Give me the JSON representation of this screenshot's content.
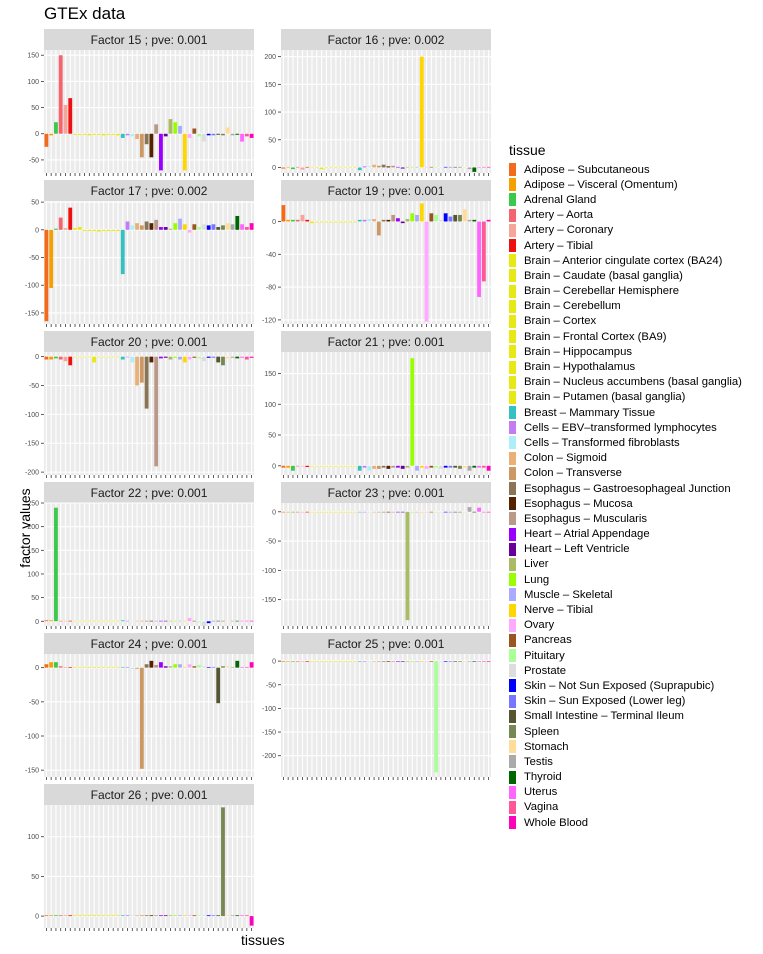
{
  "figure": {
    "title": "GTEx data",
    "xlabel": "tissues",
    "ylabel": "factor values"
  },
  "legend": {
    "title": "tissue",
    "items": [
      {
        "label": "Adipose – Subcutaneous",
        "color": "#F26B1D"
      },
      {
        "label": "Adipose – Visceral (Omentum)",
        "color": "#F5A000"
      },
      {
        "label": "Adrenal Gland",
        "color": "#3AC94A"
      },
      {
        "label": "Artery – Aorta",
        "color": "#F4646E"
      },
      {
        "label": "Artery – Coronary",
        "color": "#F7A59A"
      },
      {
        "label": "Artery – Tibial",
        "color": "#EE1111"
      },
      {
        "label": "Brain – Anterior cingulate cortex (BA24)",
        "color": "#E8E815"
      },
      {
        "label": "Brain – Caudate (basal ganglia)",
        "color": "#E8E815"
      },
      {
        "label": "Brain – Cerebellar Hemisphere",
        "color": "#E8E815"
      },
      {
        "label": "Brain – Cerebellum",
        "color": "#E8E815"
      },
      {
        "label": "Brain – Cortex",
        "color": "#E8E815"
      },
      {
        "label": "Brain – Frontal Cortex (BA9)",
        "color": "#E8E815"
      },
      {
        "label": "Brain – Hippocampus",
        "color": "#E8E815"
      },
      {
        "label": "Brain – Hypothalamus",
        "color": "#E8E815"
      },
      {
        "label": "Brain – Nucleus accumbens (basal ganglia)",
        "color": "#E8E815"
      },
      {
        "label": "Brain – Putamen (basal ganglia)",
        "color": "#E8E815"
      },
      {
        "label": "Breast – Mammary Tissue",
        "color": "#35C1C4"
      },
      {
        "label": "Cells – EBV–transformed lymphocytes",
        "color": "#C37CF2"
      },
      {
        "label": "Cells – Transformed fibroblasts",
        "color": "#AEEDFA"
      },
      {
        "label": "Colon – Sigmoid",
        "color": "#EBB078"
      },
      {
        "label": "Colon – Transverse",
        "color": "#CC9966"
      },
      {
        "label": "Esophagus – Gastroesophageal Junction",
        "color": "#8B7355"
      },
      {
        "label": "Esophagus – Mucosa",
        "color": "#552200"
      },
      {
        "label": "Esophagus – Muscularis",
        "color": "#BB9988"
      },
      {
        "label": "Heart – Atrial Appendage",
        "color": "#9900FF"
      },
      {
        "label": "Heart – Left Ventricle",
        "color": "#660099"
      },
      {
        "label": "Liver",
        "color": "#AABB66"
      },
      {
        "label": "Lung",
        "color": "#99FF00"
      },
      {
        "label": "Muscle – Skeletal",
        "color": "#AAAAFF"
      },
      {
        "label": "Nerve – Tibial",
        "color": "#FFD700"
      },
      {
        "label": "Ovary",
        "color": "#FFAAFF"
      },
      {
        "label": "Pancreas",
        "color": "#995522"
      },
      {
        "label": "Pituitary",
        "color": "#AAFF99"
      },
      {
        "label": "Prostate",
        "color": "#DDDDDD"
      },
      {
        "label": "Skin – Not Sun Exposed (Suprapubic)",
        "color": "#0000FF"
      },
      {
        "label": "Skin – Sun Exposed (Lower leg)",
        "color": "#7777FF"
      },
      {
        "label": "Small Intestine – Terminal Ileum",
        "color": "#555533"
      },
      {
        "label": "Spleen",
        "color": "#778855"
      },
      {
        "label": "Stomach",
        "color": "#FFDD99"
      },
      {
        "label": "Testis",
        "color": "#AAAAAA"
      },
      {
        "label": "Thyroid",
        "color": "#006600"
      },
      {
        "label": "Uterus",
        "color": "#FF66FF"
      },
      {
        "label": "Vagina",
        "color": "#FF5599"
      },
      {
        "label": "Whole Blood",
        "color": "#FF00BB"
      }
    ]
  },
  "chart_data": [
    {
      "type": "bar",
      "title": "Factor 15 ; pve: 0.001",
      "ylim": [
        -75,
        160
      ],
      "yticks": [
        -50,
        0,
        50,
        100,
        150
      ],
      "values": [
        -25,
        -3,
        22,
        150,
        55,
        68,
        -2,
        -2,
        -2,
        -3,
        -2,
        -2,
        -3,
        -2,
        -2,
        -3,
        -8,
        -3,
        -5,
        -10,
        -45,
        -20,
        -45,
        18,
        -70,
        -5,
        28,
        22,
        15,
        -70,
        -8,
        10,
        -5,
        -15,
        -3,
        -3,
        -2,
        -3,
        12,
        -3,
        -2,
        -15,
        -5,
        -8
      ]
    },
    {
      "type": "bar",
      "title": "Factor 16 ; pve: 0.002",
      "ylim": [
        -10,
        212
      ],
      "yticks": [
        0,
        50,
        100,
        150,
        200
      ],
      "values": [
        -2,
        1,
        -3,
        1,
        -4,
        1,
        1,
        0,
        -3,
        0,
        1,
        -1,
        1,
        1,
        1,
        1,
        -5,
        2,
        2,
        5,
        3,
        5,
        2,
        3,
        1,
        -2,
        1,
        1,
        1,
        200,
        1,
        1,
        1,
        -1,
        1,
        1,
        1,
        1,
        1,
        -3,
        -8,
        0,
        1,
        1
      ]
    },
    {
      "type": "bar",
      "title": "Factor 17 ; pve: 0.002",
      "ylim": [
        -170,
        52
      ],
      "yticks": [
        -150,
        -100,
        -50,
        0,
        50
      ],
      "values": [
        -165,
        -105,
        2,
        22,
        3,
        40,
        3,
        5,
        -2,
        -2,
        -2,
        -3,
        -2,
        -2,
        -2,
        -2,
        -80,
        15,
        8,
        12,
        8,
        15,
        12,
        18,
        5,
        5,
        2,
        12,
        20,
        10,
        -5,
        10,
        5,
        10,
        8,
        10,
        5,
        8,
        12,
        10,
        25,
        10,
        5,
        12
      ]
    },
    {
      "type": "bar",
      "title": "Factor 19 ; pve: 0.001",
      "ylim": [
        -125,
        25
      ],
      "yticks": [
        -120,
        -80,
        -40,
        0
      ],
      "values": [
        20,
        2,
        2,
        2,
        8,
        2,
        -2,
        -1,
        -1,
        -1,
        -1,
        -1,
        -1,
        -1,
        -1,
        -1,
        2,
        2,
        3,
        3,
        -17,
        2,
        2,
        8,
        4,
        -2,
        3,
        10,
        8,
        22,
        -122,
        10,
        8,
        2,
        10,
        6,
        8,
        8,
        15,
        2,
        2,
        -92,
        -73,
        2
      ]
    },
    {
      "type": "bar",
      "title": "Factor 20 ; pve: 0.001",
      "ylim": [
        -205,
        8
      ],
      "yticks": [
        -200,
        -150,
        -100,
        -50,
        0
      ],
      "values": [
        -5,
        -5,
        -3,
        -5,
        -8,
        -15,
        -1,
        -1,
        -1,
        -1,
        -10,
        -1,
        -1,
        -1,
        -1,
        -1,
        -5,
        -1,
        -10,
        -50,
        -45,
        -90,
        -10,
        -190,
        -3,
        -2,
        -5,
        -2,
        -5,
        -10,
        -5,
        -2,
        -3,
        -8,
        -2,
        -2,
        -10,
        -15,
        -3,
        -2,
        -3,
        -2,
        -5,
        -2
      ]
    },
    {
      "type": "bar",
      "title": "Factor 21 ; pve: 0.001",
      "ylim": [
        -15,
        185
      ],
      "yticks": [
        0,
        50,
        100,
        150
      ],
      "values": [
        -3,
        -3,
        -8,
        -1,
        -1,
        -2,
        -1,
        -1,
        -1,
        -1,
        -1,
        -1,
        -1,
        -1,
        -1,
        -1,
        -8,
        -3,
        -8,
        -5,
        -5,
        -3,
        -5,
        -3,
        -3,
        -5,
        -3,
        175,
        -8,
        -3,
        -5,
        -3,
        -3,
        -5,
        -3,
        -3,
        -3,
        -5,
        -3,
        -8,
        -3,
        -3,
        -3,
        -8
      ]
    },
    {
      "type": "bar",
      "title": "Factor 22 ; pve: 0.001",
      "ylim": [
        -10,
        250
      ],
      "yticks": [
        0,
        50,
        100,
        150,
        200,
        250
      ],
      "values": [
        2,
        2,
        240,
        1,
        1,
        1,
        1,
        1,
        1,
        1,
        1,
        1,
        1,
        1,
        1,
        1,
        2,
        1,
        1,
        1,
        1,
        1,
        1,
        1,
        1,
        1,
        1,
        1,
        1,
        1,
        7,
        1,
        -2,
        -10,
        -4,
        1,
        1,
        1,
        1,
        1,
        1,
        1,
        1,
        1
      ]
    },
    {
      "type": "bar",
      "title": "Factor 23 ; pve: 0.001",
      "ylim": [
        -195,
        15
      ],
      "yticks": [
        -150,
        -100,
        -50,
        0
      ],
      "values": [
        -1,
        -1,
        -1,
        -1,
        -1,
        -1,
        -1,
        -1,
        -1,
        -1,
        -1,
        -1,
        -1,
        -1,
        -1,
        -1,
        -1,
        -1,
        -1,
        -1,
        -1,
        -1,
        -1,
        -1,
        -1,
        -1,
        -185,
        -1,
        -1,
        -1,
        -1,
        -1,
        -1,
        -1,
        -1,
        -1,
        -1,
        -1,
        -1,
        8,
        -1,
        7,
        -1,
        -1
      ]
    },
    {
      "type": "bar",
      "title": "Factor 24 ; pve: 0.001",
      "ylim": [
        -160,
        20
      ],
      "yticks": [
        -150,
        -100,
        -50,
        0
      ],
      "values": [
        5,
        8,
        8,
        2,
        1,
        1,
        1,
        1,
        1,
        1,
        1,
        1,
        1,
        1,
        1,
        1,
        1,
        1,
        -2,
        -2,
        -148,
        5,
        10,
        4,
        8,
        2,
        2,
        5,
        5,
        1,
        5,
        2,
        4,
        2,
        1,
        1,
        -52,
        2,
        2,
        1,
        10,
        1,
        1,
        8
      ]
    },
    {
      "type": "bar",
      "title": "Factor 25 ; pve: 0.001",
      "ylim": [
        -245,
        15
      ],
      "yticks": [
        -200,
        -150,
        -100,
        -50,
        0
      ],
      "values": [
        -1,
        -1,
        -1,
        -1,
        -1,
        -1,
        -1,
        -1,
        -1,
        -1,
        -1,
        -1,
        -1,
        -1,
        -1,
        -1,
        -1,
        -1,
        -1,
        -1,
        -1,
        -1,
        -1,
        -1,
        -1,
        -1,
        -1,
        -1,
        -1,
        -1,
        -1,
        -1,
        -235,
        -1,
        -1,
        -1,
        -1,
        -1,
        -1,
        -1,
        -1,
        -1,
        -1,
        -1
      ]
    },
    {
      "type": "bar",
      "title": "Factor 26 ; pve: 0.001",
      "ylim": [
        -15,
        140
      ],
      "yticks": [
        0,
        50,
        100
      ],
      "values": [
        1,
        1,
        1,
        1,
        1,
        1,
        1,
        1,
        1,
        1,
        1,
        1,
        1,
        1,
        1,
        1,
        1,
        1,
        1,
        1,
        1,
        1,
        1,
        1,
        1,
        1,
        1,
        1,
        1,
        1,
        1,
        1,
        1,
        1,
        1,
        1,
        1,
        137,
        1,
        1,
        1,
        1,
        1,
        -12
      ]
    }
  ]
}
